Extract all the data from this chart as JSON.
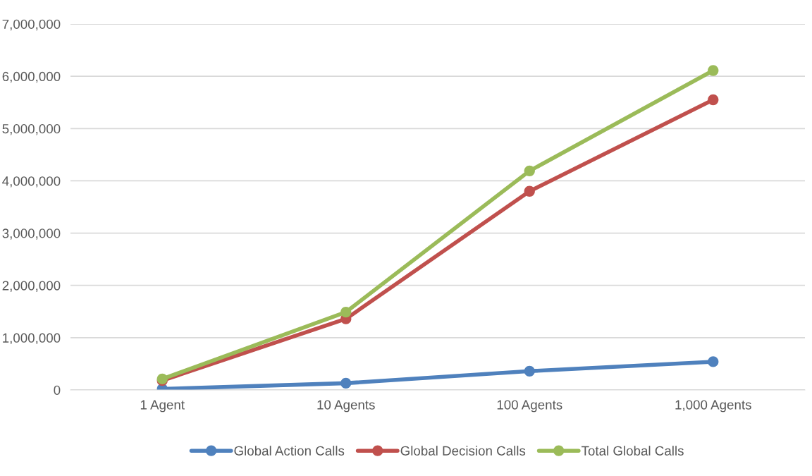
{
  "chart_data": {
    "type": "line",
    "categories": [
      "1 Agent",
      "10 Agents",
      "100 Agents",
      "1,000 Agents"
    ],
    "series": [
      {
        "name": "Global Action Calls",
        "color": "#4f81bd",
        "values": [
          20000,
          130000,
          360000,
          540000
        ]
      },
      {
        "name": "Global Decision Calls",
        "color": "#c0504d",
        "values": [
          180000,
          1360000,
          3800000,
          5550000
        ]
      },
      {
        "name": "Total Global Calls",
        "color": "#9bbb59",
        "values": [
          210000,
          1490000,
          4190000,
          6110000
        ]
      }
    ],
    "ylim": [
      0,
      7000000
    ],
    "yticks": [
      {
        "value": 0,
        "label": "0"
      },
      {
        "value": 1000000,
        "label": "1,000,000"
      },
      {
        "value": 2000000,
        "label": "2,000,000"
      },
      {
        "value": 3000000,
        "label": "3,000,000"
      },
      {
        "value": 4000000,
        "label": "4,000,000"
      },
      {
        "value": 5000000,
        "label": "5,000,000"
      },
      {
        "value": 6000000,
        "label": "6,000,000"
      },
      {
        "value": 7000000,
        "label": "7,000,000"
      }
    ],
    "grid": "y",
    "legend": "bottom",
    "marker": "circle",
    "line_style": "solid"
  }
}
